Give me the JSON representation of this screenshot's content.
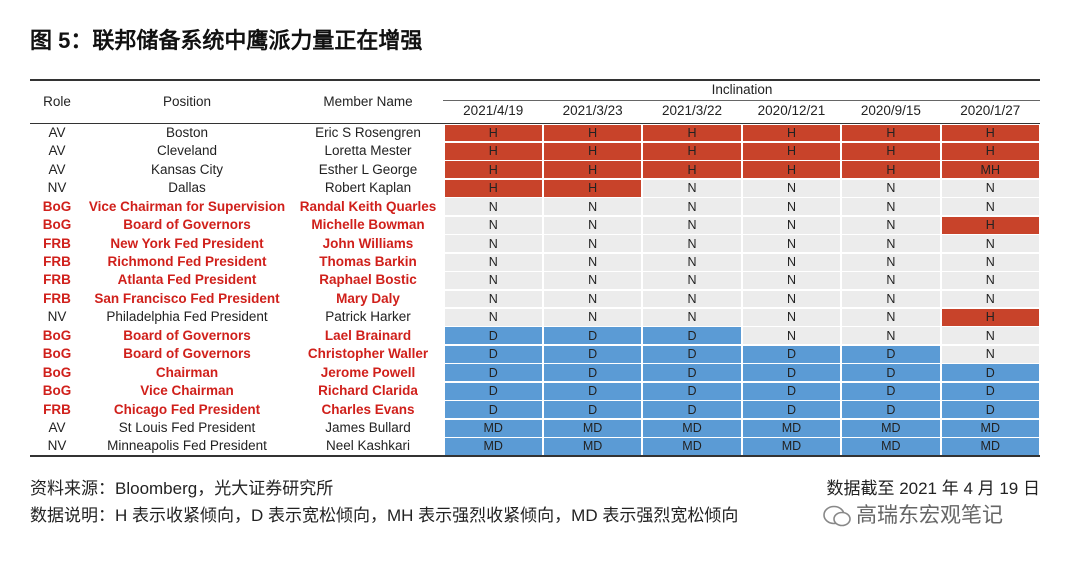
{
  "header": {
    "title": "图 5：联邦储备系统中鹰派力量正在增强"
  },
  "table": {
    "columns": [
      "Role",
      "Position",
      "Member Name"
    ],
    "group": "Inclination",
    "dates": [
      "2021/4/19",
      "2021/3/23",
      "2021/3/22",
      "2020/12/21",
      "2020/9/15",
      "2020/1/27"
    ],
    "rows": [
      [
        "AV",
        "Boston",
        "Eric S Rosengren",
        "H",
        "H",
        "H",
        "H",
        "H",
        "H"
      ],
      [
        "AV",
        "Cleveland",
        "Loretta Mester",
        "H",
        "H",
        "H",
        "H",
        "H",
        "H"
      ],
      [
        "AV",
        "Kansas City",
        "Esther L George",
        "H",
        "H",
        "H",
        "H",
        "H",
        "MH"
      ],
      [
        "NV",
        "Dallas",
        "Robert Kaplan",
        "H",
        "H",
        "N",
        "N",
        "N",
        "N"
      ],
      [
        "BoG",
        "Vice Chairman for Supervision",
        "Randal Keith Quarles",
        "N",
        "N",
        "N",
        "N",
        "N",
        "N"
      ],
      [
        "BoG",
        "Board of Governors",
        "Michelle Bowman",
        "N",
        "N",
        "N",
        "N",
        "N",
        "H"
      ],
      [
        "FRB",
        "New York Fed President",
        "John Williams",
        "N",
        "N",
        "N",
        "N",
        "N",
        "N"
      ],
      [
        "FRB",
        "Richmond Fed President",
        "Thomas Barkin",
        "N",
        "N",
        "N",
        "N",
        "N",
        "N"
      ],
      [
        "FRB",
        "Atlanta Fed President",
        "Raphael Bostic",
        "N",
        "N",
        "N",
        "N",
        "N",
        "N"
      ],
      [
        "FRB",
        "San Francisco Fed President",
        "Mary Daly",
        "N",
        "N",
        "N",
        "N",
        "N",
        "N"
      ],
      [
        "NV",
        "Philadelphia Fed President",
        "Patrick Harker",
        "N",
        "N",
        "N",
        "N",
        "N",
        "H"
      ],
      [
        "BoG",
        "Board of Governors",
        "Lael Brainard",
        "D",
        "D",
        "D",
        "N",
        "N",
        "N"
      ],
      [
        "BoG",
        "Board of Governors",
        "Christopher Waller",
        "D",
        "D",
        "D",
        "D",
        "D",
        "N"
      ],
      [
        "BoG",
        "Chairman",
        "Jerome Powell",
        "D",
        "D",
        "D",
        "D",
        "D",
        "D"
      ],
      [
        "BoG",
        "Vice Chairman",
        "Richard Clarida",
        "D",
        "D",
        "D",
        "D",
        "D",
        "D"
      ],
      [
        "FRB",
        "Chicago Fed President",
        "Charles Evans",
        "D",
        "D",
        "D",
        "D",
        "D",
        "D"
      ],
      [
        "AV",
        "St Louis Fed President",
        "James Bullard",
        "MD",
        "MD",
        "MD",
        "MD",
        "MD",
        "MD"
      ],
      [
        "NV",
        "Minneapolis Fed President",
        "Neel Kashkari",
        "MD",
        "MD",
        "MD",
        "MD",
        "MD",
        "MD"
      ]
    ]
  },
  "footer": {
    "source": "资料来源：Bloomberg，光大证券研究所",
    "date": "数据截至 2021 年 4 月 19 日",
    "note": "数据说明：H 表示收紧倾向，D 表示宽松倾向，MH 表示强烈收紧倾向，MD 表示强烈宽松倾向",
    "watermark": "高瑞东宏观笔记"
  }
}
